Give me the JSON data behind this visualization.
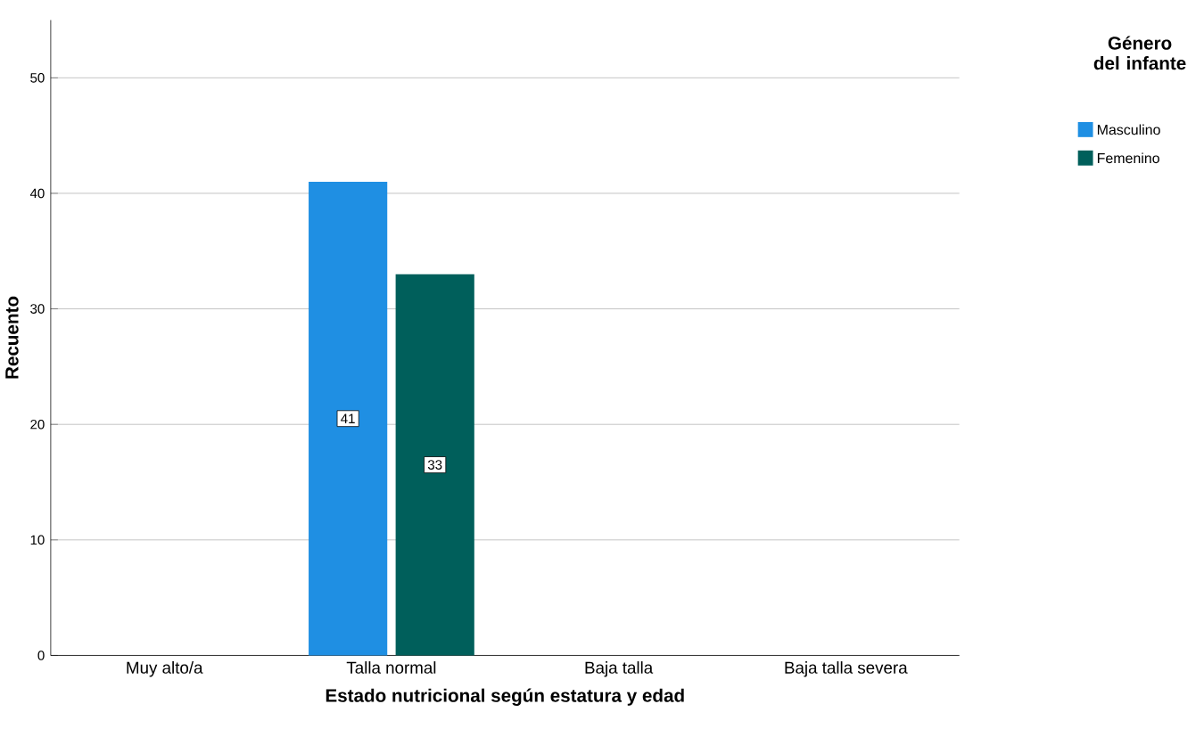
{
  "chart_data": {
    "type": "bar",
    "xlabel": "Estado nutricional según estatura y edad",
    "ylabel": "Recuento",
    "legend_title": "Género del infante",
    "categories": [
      "Muy alto/a",
      "Talla normal",
      "Baja talla",
      "Baja talla severa"
    ],
    "series": [
      {
        "name": "Masculino",
        "color": "#1f8fe3",
        "values": [
          0,
          41,
          0,
          0
        ],
        "value_labels": [
          null,
          "41",
          null,
          null
        ]
      },
      {
        "name": "Femenino",
        "color": "#005f5b",
        "values": [
          0,
          33,
          0,
          0
        ],
        "value_labels": [
          null,
          "33",
          null,
          null
        ]
      }
    ],
    "ylim": [
      0,
      55
    ],
    "yticks": [
      0,
      10,
      20,
      30,
      40,
      50
    ],
    "grid": "y",
    "legend": "top right"
  }
}
